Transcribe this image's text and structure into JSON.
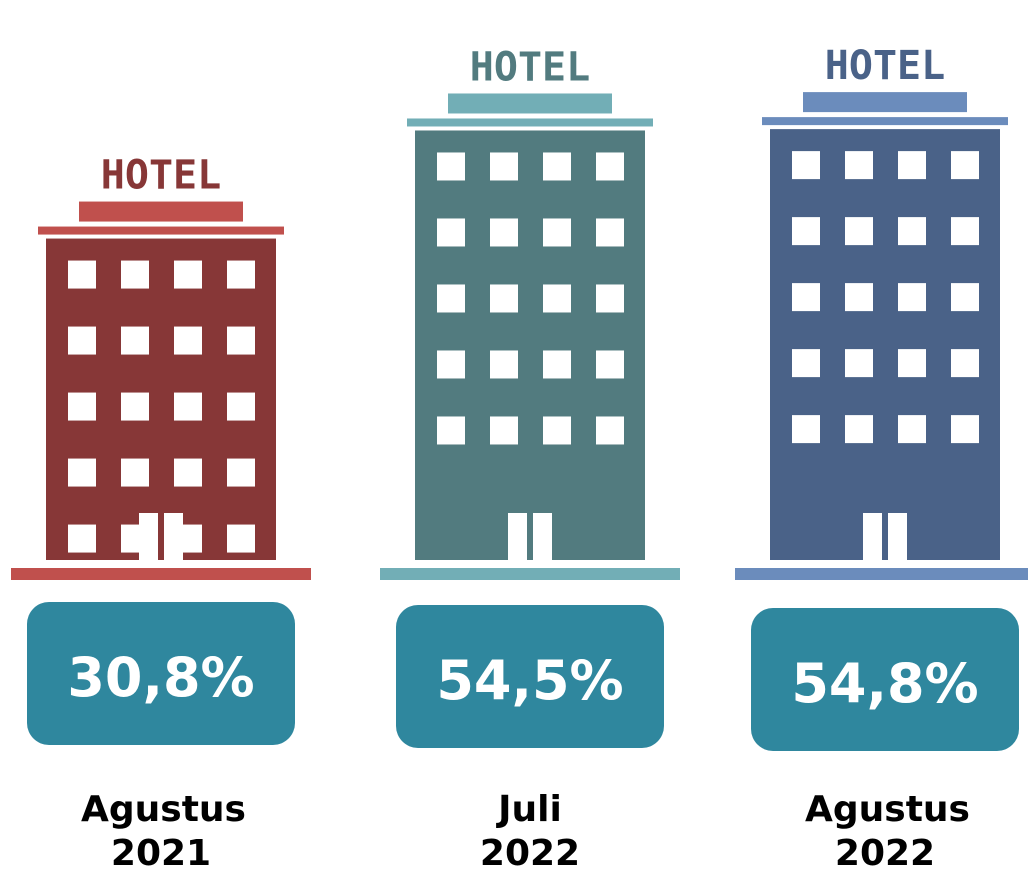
{
  "chart_data": {
    "type": "pictograph",
    "sign_text": "HOTEL",
    "categories": [
      "Agustus 2021",
      "Juli 2022",
      "Agustus 2022"
    ],
    "values": [
      30.8,
      54.5,
      54.8
    ],
    "value_labels": [
      "30,8%",
      "54,5%",
      "54,8%"
    ],
    "colors": [
      "#873737",
      "#527b7f",
      "#4a6288"
    ],
    "accent_colors": [
      "#c0504d",
      "#72aeb6",
      "#6b8cbc"
    ],
    "box_color": "#2f879e"
  }
}
